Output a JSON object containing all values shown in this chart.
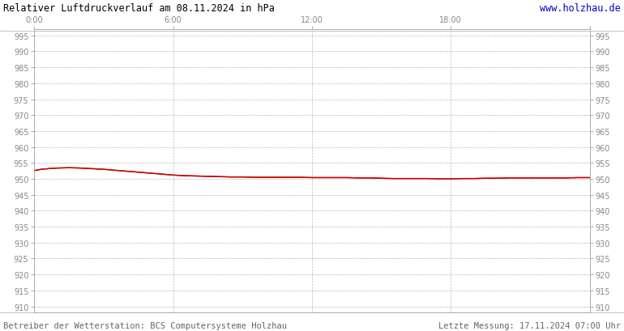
{
  "title": "Relativer Luftdruckverlauf am 08.11.2024 in hPa",
  "url_text": "www.holzhau.de",
  "footer_left": "Betreiber der Wetterstation: BCS Computersysteme Holzhau",
  "footer_right": "Letzte Messung: 17.11.2024 07:00 Uhr",
  "x_ticks": [
    0,
    6,
    12,
    18,
    24
  ],
  "x_tick_labels": [
    "0:00",
    "6:00",
    "12:00",
    "18:00",
    ""
  ],
  "ylim": [
    908,
    997
  ],
  "yticks": [
    910,
    915,
    920,
    925,
    930,
    935,
    940,
    945,
    950,
    955,
    960,
    965,
    970,
    975,
    980,
    985,
    990,
    995
  ],
  "background_color": "#ffffff",
  "grid_color": "#aaaaaa",
  "line_color": "#cc0000",
  "title_color": "#000000",
  "url_color": "#0000cc",
  "footer_color": "#666666",
  "tick_color": "#888888",
  "pressure_data_x": [
    0.0,
    0.3,
    0.6,
    1.0,
    1.5,
    2.0,
    2.5,
    3.0,
    3.5,
    4.0,
    4.5,
    5.0,
    5.5,
    6.0,
    6.5,
    7.0,
    7.5,
    8.0,
    8.5,
    9.0,
    9.5,
    10.0,
    10.5,
    11.0,
    11.5,
    12.0,
    12.5,
    13.0,
    13.5,
    14.0,
    14.5,
    15.0,
    15.5,
    16.0,
    16.5,
    17.0,
    17.5,
    18.0,
    18.5,
    19.0,
    19.5,
    20.0,
    20.5,
    21.0,
    21.5,
    22.0,
    22.5,
    23.0,
    23.5,
    24.0
  ],
  "pressure_data_y": [
    952.6,
    953.0,
    953.2,
    953.4,
    953.5,
    953.4,
    953.2,
    953.0,
    952.7,
    952.4,
    952.1,
    951.8,
    951.5,
    951.2,
    951.0,
    950.9,
    950.8,
    950.7,
    950.6,
    950.6,
    950.5,
    950.5,
    950.5,
    950.5,
    950.5,
    950.4,
    950.4,
    950.4,
    950.4,
    950.3,
    950.3,
    950.2,
    950.1,
    950.1,
    950.1,
    950.1,
    950.0,
    950.0,
    950.1,
    950.1,
    950.2,
    950.2,
    950.3,
    950.3,
    950.3,
    950.3,
    950.3,
    950.3,
    950.4,
    950.4
  ]
}
